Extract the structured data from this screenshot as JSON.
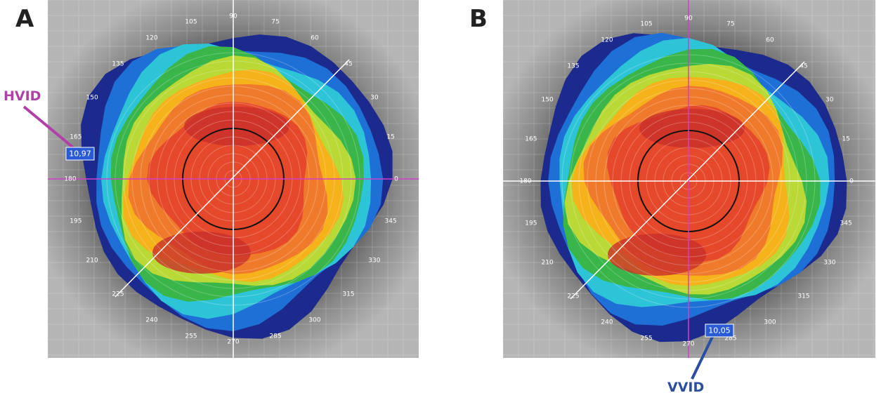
{
  "panels": [
    {
      "letter": "A",
      "annotation": {
        "label": "HVID",
        "value": "10,97"
      }
    },
    {
      "letter": "B",
      "annotation": {
        "label": "VVID",
        "value": "10,05"
      }
    }
  ],
  "angle_labels": [
    "0",
    "15",
    "30",
    "45",
    "60",
    "75",
    "90",
    "105",
    "120",
    "135",
    "150",
    "165",
    "180",
    "195",
    "210",
    "225",
    "240",
    "255",
    "270",
    "285",
    "300",
    "315",
    "330",
    "345"
  ]
}
